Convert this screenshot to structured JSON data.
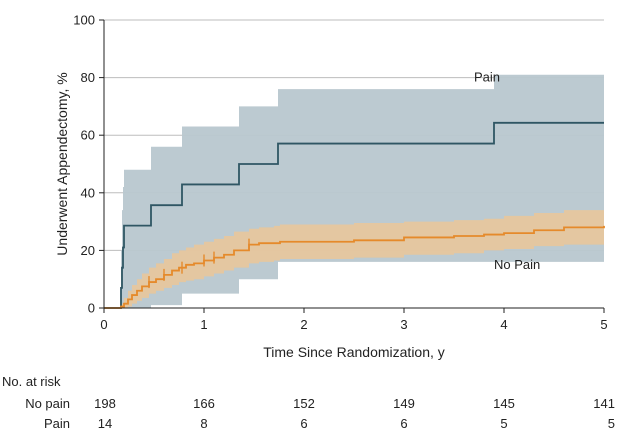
{
  "chart_data": {
    "type": "line",
    "subtype": "kaplan-meier cumulative incidence",
    "xlabel": "Time Since Randomization, y",
    "ylabel": "Underwent Appendectomy, %",
    "xlim": [
      0,
      5
    ],
    "ylim": [
      0,
      100
    ],
    "x_ticks": [
      0,
      1,
      2,
      3,
      4,
      5
    ],
    "y_ticks": [
      0,
      20,
      40,
      60,
      80,
      100
    ],
    "y_tick_labels": [
      "0",
      "20",
      "40",
      "60",
      "80",
      "100"
    ],
    "grid": "horizontal",
    "series": [
      {
        "name": "Pain",
        "label": "Pain",
        "color": "#2f5664",
        "ci_color": "#b8c7cf",
        "x": [
          0,
          0.17,
          0.18,
          0.19,
          0.2,
          0.47,
          0.78,
          1.35,
          1.74,
          3.9,
          5
        ],
        "y": [
          0,
          7,
          14,
          21,
          28.6,
          35.7,
          42.9,
          50,
          57.1,
          64.3,
          64.3
        ],
        "ci_upper": [
          0,
          20,
          34,
          42,
          48,
          56,
          63,
          70,
          76,
          81,
          81
        ],
        "ci_lower": [
          0,
          0,
          0,
          0,
          0,
          1,
          5,
          10,
          16,
          16,
          16
        ]
      },
      {
        "name": "No Pain",
        "label": "No Pain",
        "color": "#e58a2b",
        "ci_color": "#f1c590",
        "x": [
          0,
          0.17,
          0.2,
          0.24,
          0.28,
          0.33,
          0.38,
          0.45,
          0.52,
          0.6,
          0.68,
          0.75,
          0.82,
          0.9,
          1.0,
          1.1,
          1.2,
          1.3,
          1.45,
          1.55,
          1.7,
          1.76,
          2.0,
          2.5,
          3.0,
          3.5,
          3.8,
          4.0,
          4.3,
          4.6,
          5.0
        ],
        "y": [
          0,
          0.5,
          1.5,
          3,
          4.5,
          6,
          7.5,
          9,
          10,
          11.5,
          13,
          14,
          15,
          15.5,
          16.5,
          17.5,
          18.5,
          20,
          22,
          22.5,
          22.5,
          23,
          23,
          23.5,
          24.5,
          25,
          25.5,
          26,
          27,
          28,
          28.5
        ],
        "ci_upper": [
          0,
          1.5,
          3.5,
          6,
          8,
          10,
          12,
          14,
          15.5,
          17,
          19,
          20,
          21,
          22,
          23,
          24,
          25,
          26.5,
          27.5,
          28,
          28.5,
          29,
          29,
          29.5,
          30,
          30.5,
          31,
          32,
          33,
          34,
          34.5
        ],
        "ci_lower": [
          0,
          0,
          0,
          0.5,
          1.5,
          2.5,
          3.5,
          5,
          6,
          7,
          8,
          9,
          9.5,
          10,
          11,
          12,
          13,
          14,
          15.5,
          16,
          16.5,
          17,
          17,
          17.5,
          18.5,
          19,
          20,
          20.5,
          21.5,
          22,
          22.5
        ],
        "censor_x": [
          0.45,
          0.6,
          0.78,
          1.0,
          1.1,
          1.45
        ]
      }
    ],
    "annotations": [
      {
        "text": "Pain",
        "x": 3.7,
        "y": 80
      },
      {
        "text": "No Pain",
        "x": 3.9,
        "y": 15
      }
    ],
    "risk_table": {
      "title": "No. at risk",
      "rows": [
        {
          "label": "No pain",
          "values": [
            "198",
            "166",
            "152",
            "149",
            "145",
            "141"
          ]
        },
        {
          "label": "Pain",
          "values": [
            "14",
            "8",
            "6",
            "6",
            "5",
            "5"
          ]
        }
      ]
    }
  }
}
